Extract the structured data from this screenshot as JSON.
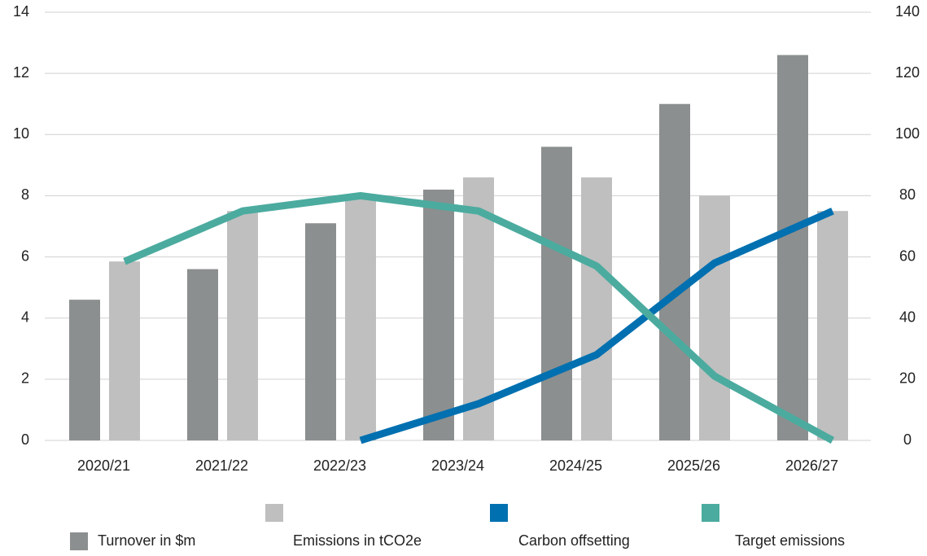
{
  "chart_data": {
    "type": "bar",
    "categories": [
      "2020/21",
      "2021/22",
      "2022/23",
      "2023/24",
      "2024/25",
      "2025/26",
      "2026/27"
    ],
    "series": [
      {
        "name": "Turnover in $m",
        "type": "bar",
        "color": "#8c8f8f",
        "values": [
          4.6,
          5.6,
          7.1,
          8.2,
          9.6,
          11,
          12.6
        ]
      },
      {
        "name": "Emissions in tCO2e",
        "type": "bar",
        "color": "#bfbfbf",
        "values": [
          5.85,
          7.5,
          8,
          8.6,
          8.6,
          8,
          7.5
        ]
      },
      {
        "name": "Carbon offsetting",
        "type": "line",
        "axis": "y2",
        "color": "#0070b0",
        "values": [
          null,
          null,
          0,
          12,
          28,
          58,
          75
        ]
      },
      {
        "name": "Target emissions",
        "type": "line",
        "axis": "y2",
        "color": "#4bab9f",
        "values": [
          58.5,
          75,
          80,
          75,
          57,
          21,
          0
        ]
      }
    ],
    "ylim": [
      0,
      14
    ],
    "yticks": [
      0,
      2,
      4,
      6,
      8,
      10,
      12,
      14
    ],
    "y2lim": [
      0,
      140
    ],
    "y2ticks": [
      0,
      20,
      40,
      60,
      80,
      100,
      120,
      140
    ],
    "grid": true,
    "legend": "bottom"
  }
}
